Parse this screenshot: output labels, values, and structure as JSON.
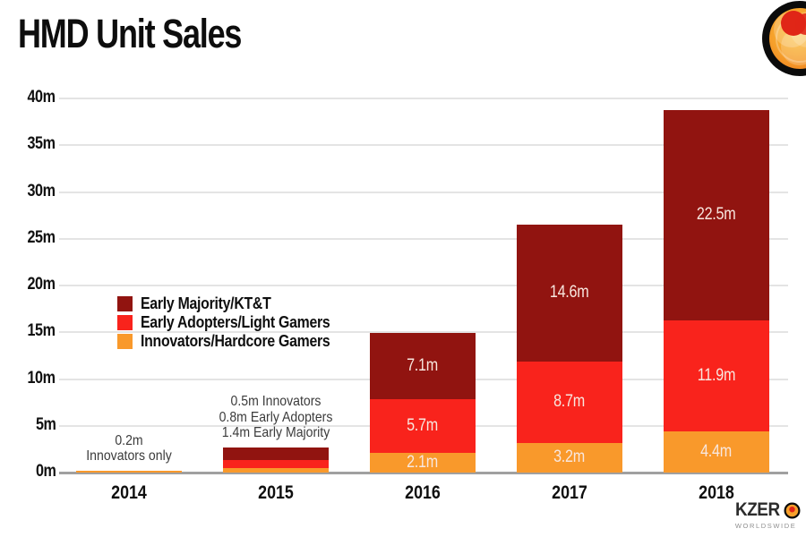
{
  "title": "HMD Unit Sales",
  "colors": {
    "early_majority": "#911410",
    "early_adopters": "#f9231c",
    "innovators": "#f9992b",
    "grid": "#e4e4e4",
    "baseline": "#a0a0a0",
    "bar_label": "#f8e7df"
  },
  "legend": {
    "items": [
      {
        "label": "Early Majority/KT&T",
        "color": "#911410"
      },
      {
        "label": "Early Adopters/Light Gamers",
        "color": "#f9231c"
      },
      {
        "label": "Innovators/Hardcore Gamers",
        "color": "#f9992b"
      }
    ]
  },
  "chart_data": {
    "type": "bar",
    "stacked": true,
    "title": "HMD Unit Sales",
    "categories": [
      "2014",
      "2015",
      "2016",
      "2017",
      "2018"
    ],
    "series": [
      {
        "name": "Innovators/Hardcore Gamers",
        "color": "#f9992b",
        "values": [
          0.2,
          0.5,
          2.1,
          3.2,
          4.4
        ],
        "labels": [
          "",
          "",
          "2.1m",
          "3.2m",
          "4.4m"
        ]
      },
      {
        "name": "Early Adopters/Light Gamers",
        "color": "#f9231c",
        "values": [
          0,
          0.8,
          5.7,
          8.7,
          11.9
        ],
        "labels": [
          "",
          "",
          "5.7m",
          "8.7m",
          "11.9m"
        ]
      },
      {
        "name": "Early Majority/KT&T",
        "color": "#911410",
        "values": [
          0,
          1.4,
          7.1,
          14.6,
          22.5
        ],
        "labels": [
          "",
          "",
          "7.1m",
          "14.6m",
          "22.5m"
        ]
      }
    ],
    "totals": [
      0.2,
      2.7,
      14.9,
      26.5,
      38.8
    ],
    "y_ticks": [
      {
        "value": 0,
        "label": "0m"
      },
      {
        "value": 5,
        "label": "5m"
      },
      {
        "value": 10,
        "label": "10m"
      },
      {
        "value": 15,
        "label": "15m"
      },
      {
        "value": 20,
        "label": "20m"
      },
      {
        "value": 25,
        "label": "25m"
      },
      {
        "value": 30,
        "label": "30m"
      },
      {
        "value": 35,
        "label": "35m"
      },
      {
        "value": 40,
        "label": "40m"
      }
    ],
    "ylim": [
      0,
      40
    ],
    "grid": true,
    "legend_position": "middle-left",
    "annotations": [
      {
        "category": "2014",
        "lines": [
          "0.2m",
          "Innovators only"
        ]
      },
      {
        "category": "2015",
        "lines": [
          "0.5m Innovators",
          "0.8m Early Adopters",
          "1.4m Early Majority"
        ]
      }
    ]
  },
  "branding": {
    "brand_main": "KZER",
    "brand_sub": "WORLDSWIDE"
  }
}
